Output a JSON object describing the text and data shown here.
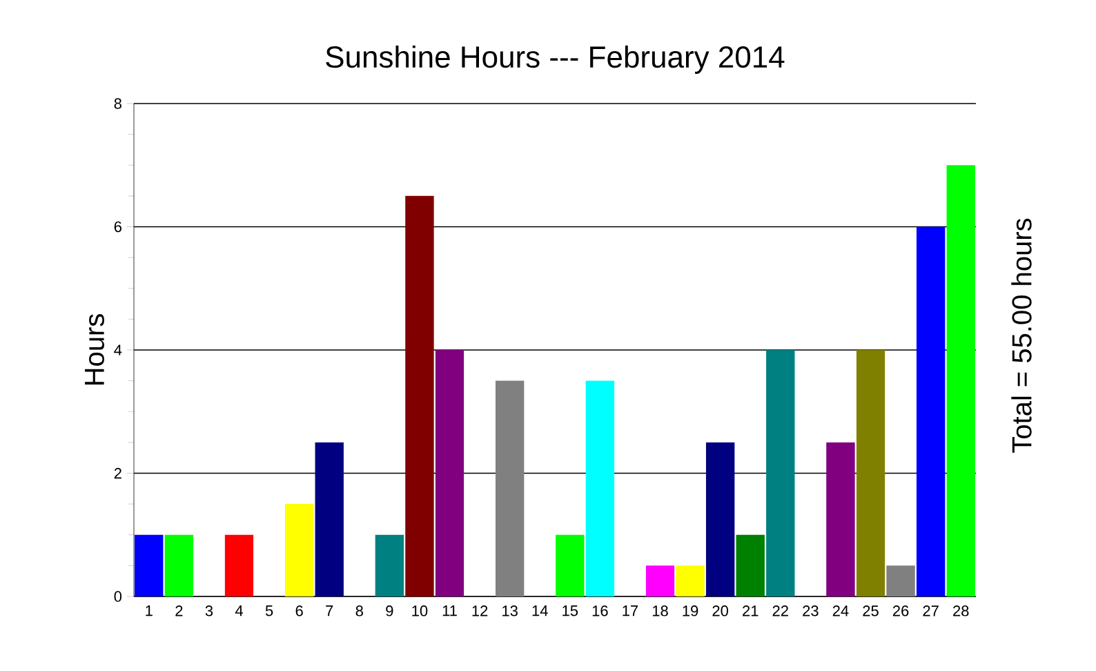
{
  "chart_data": {
    "type": "bar",
    "title": "Sunshine Hours --- February 2014",
    "ylabel": "Hours",
    "annotations": [
      "Total = 55.00 hours"
    ],
    "categories": [
      "1",
      "2",
      "3",
      "4",
      "5",
      "6",
      "7",
      "8",
      "9",
      "10",
      "11",
      "12",
      "13",
      "14",
      "15",
      "16",
      "17",
      "18",
      "19",
      "20",
      "21",
      "22",
      "23",
      "24",
      "25",
      "26",
      "27",
      "28"
    ],
    "values": [
      1,
      1,
      0,
      1,
      0,
      1.5,
      2.5,
      0,
      1,
      6.5,
      4,
      0,
      3.5,
      0,
      1,
      3.5,
      0,
      0.5,
      0.5,
      2.5,
      1,
      4,
      0,
      2.5,
      4,
      0.5,
      6,
      7
    ],
    "colors": [
      "#0000ff",
      "#00ff00",
      "#808080",
      "#ff0000",
      "#808080",
      "#ffff00",
      "#000080",
      "#808080",
      "#008080",
      "#800000",
      "#800080",
      "#808080",
      "#808080",
      "#808080",
      "#00ff00",
      "#00ffff",
      "#808080",
      "#ff00ff",
      "#ffff00",
      "#000080",
      "#008000",
      "#008080",
      "#808080",
      "#800080",
      "#808000",
      "#808080",
      "#0000ff",
      "#00ff00"
    ],
    "ylim": [
      0,
      8
    ],
    "yticks": [
      0,
      2,
      4,
      6,
      8
    ],
    "grid": "y"
  }
}
